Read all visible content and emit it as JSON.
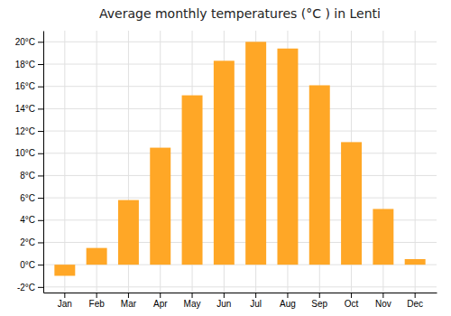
{
  "chart_data": {
    "type": "bar",
    "title": "Average monthly temperatures (°C ) in Lenti",
    "categories": [
      "Jan",
      "Feb",
      "Mar",
      "Apr",
      "May",
      "Jun",
      "Jul",
      "Aug",
      "Sep",
      "Oct",
      "Nov",
      "Dec"
    ],
    "values": [
      -1.0,
      1.5,
      5.8,
      10.5,
      15.2,
      18.3,
      20.0,
      19.4,
      16.1,
      11.0,
      5.0,
      0.5
    ],
    "color": "#FFA726",
    "ylim": [
      -2.5,
      21
    ],
    "yticks": [
      {
        "value": -2,
        "label": "-2°C"
      },
      {
        "value": 0,
        "label": "0°C"
      },
      {
        "value": 2,
        "label": "2°C"
      },
      {
        "value": 4,
        "label": "4°C"
      },
      {
        "value": 6,
        "label": "6°C"
      },
      {
        "value": 8,
        "label": "8°C"
      },
      {
        "value": 10,
        "label": "10°C"
      },
      {
        "value": 12,
        "label": "12°C"
      },
      {
        "value": 14,
        "label": "14°C"
      },
      {
        "value": 16,
        "label": "16°C"
      },
      {
        "value": 18,
        "label": "18°C"
      },
      {
        "value": 20,
        "label": "20°C"
      }
    ],
    "grid": true
  }
}
